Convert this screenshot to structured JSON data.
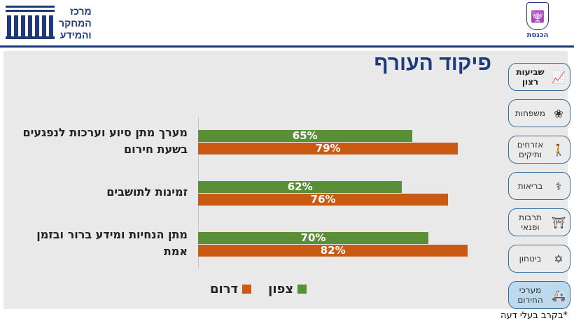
{
  "header": {
    "center_name": [
      "מרכז",
      "המחקר",
      "והמידע"
    ],
    "knesset_label": "הכנסת"
  },
  "title": "פיקוד העורף",
  "sidebar": {
    "items": [
      {
        "label": "שביעות רצון",
        "icon": "chart-line-icon",
        "active": false,
        "bold": true
      },
      {
        "label": "משפחות",
        "icon": "family-icon",
        "active": false
      },
      {
        "label": "אזרחים ותיקים",
        "icon": "elderly-person-icon",
        "active": false
      },
      {
        "label": "בריאות",
        "icon": "stethoscope-icon",
        "active": false
      },
      {
        "label": "תרבות ופנאי",
        "icon": "theater-curtain-icon",
        "active": false
      },
      {
        "label": "ביטחון",
        "icon": "star-of-david-icon",
        "active": false
      },
      {
        "label": "מערכי החירום",
        "icon": "ambulance-icon",
        "active": true
      }
    ]
  },
  "chart_data": {
    "type": "bar",
    "orientation": "horizontal",
    "categories": [
      "מערך מתן סיוע וערכות לנפגעים בשעת חירום",
      "זמינות לתושבים",
      "מתן הנחיות ומידע ברור ובזמן אמת"
    ],
    "series": [
      {
        "name": "צפון",
        "color": "#5a8f3a",
        "values": [
          65,
          62,
          70
        ]
      },
      {
        "name": "דרום",
        "color": "#c85a14",
        "values": [
          79,
          76,
          82
        ]
      }
    ],
    "value_format": "%",
    "legend": "bottom",
    "grid": false
  },
  "footnote": "*בקרב בעלי דעה"
}
